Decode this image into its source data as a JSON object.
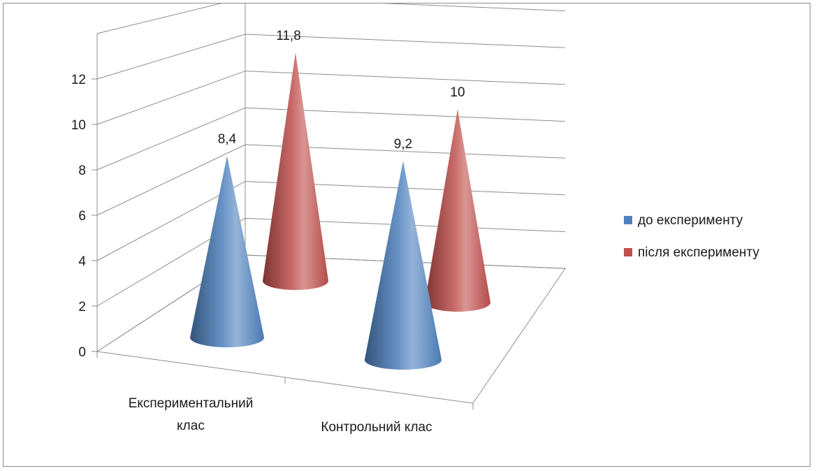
{
  "chart_data": {
    "type": "bar",
    "shape": "cone",
    "projection": "3d",
    "title": "",
    "xlabel": "",
    "ylabel": "",
    "categories": [
      [
        "Експериментальний",
        "клас"
      ],
      [
        "Контрольний клас"
      ]
    ],
    "series": [
      {
        "name": "до експерименту",
        "values": [
          8.4,
          9.2
        ],
        "labels": [
          "8,4",
          "9,2"
        ],
        "color": "#4f81bd"
      },
      {
        "name": "після експерименту",
        "values": [
          11.8,
          10
        ],
        "labels": [
          "11,8",
          "10"
        ],
        "color": "#c0504d"
      }
    ],
    "ylim": [
      0,
      12
    ],
    "yticks": [
      "0",
      "2",
      "4",
      "6",
      "8",
      "10",
      "12"
    ],
    "grid": true,
    "legend_position": "right"
  }
}
